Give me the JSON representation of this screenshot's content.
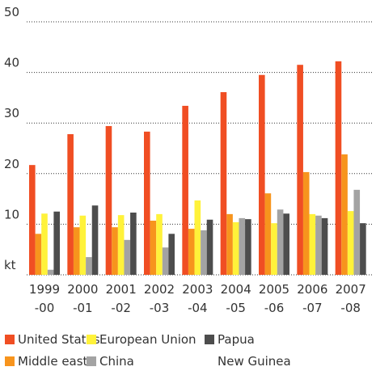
{
  "chart_data": {
    "type": "bar",
    "categories": [
      "1999\n-00",
      "2000\n-01",
      "2001\n-02",
      "2002\n-03",
      "2003\n-04",
      "2004\n-05",
      "2005\n-06",
      "2006\n-07",
      "2007\n-08"
    ],
    "series": [
      {
        "name": "United States",
        "color": "#f04e23",
        "values": [
          21.7,
          27.8,
          29.4,
          28.3,
          33.4,
          36.1,
          39.5,
          41.5,
          42.2
        ]
      },
      {
        "name": "Middle east",
        "color": "#f7941d",
        "values": [
          8.1,
          9.4,
          9.4,
          10.7,
          9.1,
          12,
          16.1,
          20.3,
          23.8
        ]
      },
      {
        "name": "European Union",
        "color": "#fff23a",
        "values": [
          12.1,
          11.7,
          11.8,
          12,
          14.7,
          10.4,
          10.2,
          12,
          12.6
        ]
      },
      {
        "name": "China",
        "color": "#a3a3a3",
        "values": [
          1,
          3.5,
          6.9,
          5.4,
          8.8,
          11.2,
          12.9,
          11.7,
          16.8
        ]
      },
      {
        "name": "Papua\nNew Guinea",
        "color": "#4d4d4d",
        "values": [
          12.5,
          13.7,
          12.3,
          8.1,
          10.9,
          11,
          12.1,
          11.2,
          10.2
        ]
      }
    ],
    "ylim": [
      0,
      50
    ],
    "yticks": [
      {
        "value": 0,
        "label": "kt"
      },
      10,
      20,
      30,
      40,
      50
    ],
    "grid": true
  }
}
